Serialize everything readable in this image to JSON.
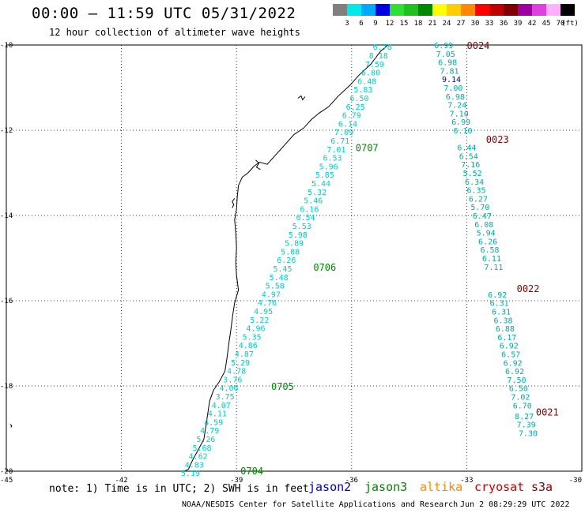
{
  "header": {
    "title": "00:00 — 11:59 UTC 05/31/2022",
    "subtitle": "12 hour collection of altimeter wave heights"
  },
  "legend": {
    "unit_label": "(ft)",
    "bins": [
      {
        "label": "3",
        "color": "#7f7f7f"
      },
      {
        "label": "6",
        "color": "#00e8e8"
      },
      {
        "label": "9",
        "color": "#00a8ff"
      },
      {
        "label": "12",
        "color": "#0000e0"
      },
      {
        "label": "15",
        "color": "#30e030"
      },
      {
        "label": "18",
        "color": "#20c020"
      },
      {
        "label": "21",
        "color": "#008800"
      },
      {
        "label": "24",
        "color": "#ffff00"
      },
      {
        "label": "27",
        "color": "#ffcc00"
      },
      {
        "label": "30",
        "color": "#ff8800"
      },
      {
        "label": "33",
        "color": "#ff0000"
      },
      {
        "label": "36",
        "color": "#c00000"
      },
      {
        "label": "39",
        "color": "#800000"
      },
      {
        "label": "42",
        "color": "#a000a0"
      },
      {
        "label": "45",
        "color": "#e040e0"
      },
      {
        "label": "70",
        "color": "#ffb0ff"
      },
      {
        "label": "",
        "color": "#000000"
      }
    ]
  },
  "map": {
    "longitude_labels": [
      "-45",
      "-42",
      "-39",
      "-36",
      "-33",
      "-30"
    ],
    "latitude_labels": [
      "-10",
      "-12",
      "-14",
      "-16",
      "-18",
      "-20"
    ],
    "lon_range": [
      -45,
      -30
    ],
    "lat_range": [
      -10,
      -20
    ]
  },
  "colors": {
    "jason2_wave": "#00cccc",
    "cryosat_wave": "#00aaaa",
    "highlight_wave": "#0000cc",
    "jason3_label": "#008800",
    "cryosat_label": "#880000"
  },
  "tracks": [
    {
      "id": "track-0704",
      "label": "0704",
      "satellite": "jason3",
      "label_pos": {
        "lon": -38.6,
        "lat": -19.98
      },
      "values": [
        {
          "text": "6.78",
          "lon": -35.2,
          "lat": -10.04
        },
        {
          "text": "8.18",
          "lon": -35.3,
          "lat": -10.24
        },
        {
          "text": "7.59",
          "lon": -35.4,
          "lat": -10.44
        },
        {
          "text": "6.80",
          "lon": -35.5,
          "lat": -10.64
        },
        {
          "text": "6.48",
          "lon": -35.6,
          "lat": -10.84
        },
        {
          "text": "5.83",
          "lon": -35.7,
          "lat": -11.04
        },
        {
          "text": "6.50",
          "lon": -35.8,
          "lat": -11.24
        },
        {
          "text": "6.25",
          "lon": -35.9,
          "lat": -11.44
        },
        {
          "text": "6.79",
          "lon": -36.0,
          "lat": -11.64
        },
        {
          "text": "6.14",
          "lon": -36.1,
          "lat": -11.84
        },
        {
          "text": "7.09",
          "lon": -36.2,
          "lat": -12.04
        },
        {
          "text": "6.71",
          "lon": -36.3,
          "lat": -12.24
        },
        {
          "text": "7.01",
          "lon": -36.4,
          "lat": -12.44
        },
        {
          "text": "6.53",
          "lon": -36.5,
          "lat": -12.64
        },
        {
          "text": "5.96",
          "lon": -36.6,
          "lat": -12.84
        },
        {
          "text": "5.85",
          "lon": -36.7,
          "lat": -13.04
        },
        {
          "text": "5.44",
          "lon": -36.8,
          "lat": -13.24
        },
        {
          "text": "5.32",
          "lon": -36.9,
          "lat": -13.44
        },
        {
          "text": "5.46",
          "lon": -37.0,
          "lat": -13.64
        },
        {
          "text": "6.16",
          "lon": -37.1,
          "lat": -13.84
        },
        {
          "text": "6.54",
          "lon": -37.2,
          "lat": -14.04
        },
        {
          "text": "5.53",
          "lon": -37.3,
          "lat": -14.24
        },
        {
          "text": "5.98",
          "lon": -37.4,
          "lat": -14.44
        },
        {
          "text": "5.89",
          "lon": -37.5,
          "lat": -14.64
        },
        {
          "text": "5.88",
          "lon": -37.6,
          "lat": -14.84
        },
        {
          "text": "6.26",
          "lon": -37.7,
          "lat": -15.04
        },
        {
          "text": "5.45",
          "lon": -37.8,
          "lat": -15.24
        },
        {
          "text": "5.48",
          "lon": -37.9,
          "lat": -15.44
        },
        {
          "text": "5.58",
          "lon": -38.0,
          "lat": -15.64
        },
        {
          "text": "4.97",
          "lon": -38.1,
          "lat": -15.84
        },
        {
          "text": "4.76",
          "lon": -38.2,
          "lat": -16.04
        },
        {
          "text": "4.95",
          "lon": -38.3,
          "lat": -16.24
        },
        {
          "text": "5.22",
          "lon": -38.4,
          "lat": -16.44
        },
        {
          "text": "4.96",
          "lon": -38.5,
          "lat": -16.64
        },
        {
          "text": "5.35",
          "lon": -38.6,
          "lat": -16.84
        },
        {
          "text": "4.86",
          "lon": -38.7,
          "lat": -17.04
        },
        {
          "text": "4.87",
          "lon": -38.8,
          "lat": -17.24
        },
        {
          "text": "5.29",
          "lon": -38.9,
          "lat": -17.44
        },
        {
          "text": "4.78",
          "lon": -39.0,
          "lat": -17.64
        },
        {
          "text": "3.76",
          "lon": -39.1,
          "lat": -17.84
        },
        {
          "text": "4.06",
          "lon": -39.2,
          "lat": -18.04
        },
        {
          "text": "3.75",
          "lon": -39.3,
          "lat": -18.24
        },
        {
          "text": "4.07",
          "lon": -39.4,
          "lat": -18.44
        },
        {
          "text": "4.11",
          "lon": -39.5,
          "lat": -18.64
        },
        {
          "text": "4.59",
          "lon": -39.6,
          "lat": -18.84
        },
        {
          "text": "4.79",
          "lon": -39.7,
          "lat": -19.04
        },
        {
          "text": "5.26",
          "lon": -39.8,
          "lat": -19.24
        },
        {
          "text": "5.68",
          "lon": -39.9,
          "lat": -19.44
        },
        {
          "text": "4.62",
          "lon": -40.0,
          "lat": -19.64
        },
        {
          "text": "4.83",
          "lon": -40.1,
          "lat": -19.84
        },
        {
          "text": "5.19",
          "lon": -40.2,
          "lat": -20.04
        }
      ]
    },
    {
      "id": "track-0024",
      "label": "0024",
      "satellite": "cryosat",
      "label_pos": {
        "lon": -32.7,
        "lat": -10.0
      },
      "values": [
        {
          "text": "6.99",
          "lon": -33.6,
          "lat": -10.0
        },
        {
          "text": "7.05",
          "lon": -33.55,
          "lat": -10.2
        },
        {
          "text": "6.98",
          "lon": -33.5,
          "lat": -10.4
        },
        {
          "text": "7.81",
          "lon": -33.45,
          "lat": -10.6
        },
        {
          "text": "9.14",
          "lon": -33.4,
          "lat": -10.8
        },
        {
          "text": "7.00",
          "lon": -33.35,
          "lat": -11.0
        },
        {
          "text": "6.98",
          "lon": -33.3,
          "lat": -11.2
        },
        {
          "text": "7.24",
          "lon": -33.25,
          "lat": -11.4
        },
        {
          "text": "7.10",
          "lon": -33.2,
          "lat": -11.6
        },
        {
          "text": "6.99",
          "lon": -33.15,
          "lat": -11.8
        }
      ]
    },
    {
      "id": "track-0023",
      "label": "0023",
      "satellite": "cryosat",
      "label_pos": {
        "lon": -32.2,
        "lat": -12.2
      },
      "values": [
        {
          "text": "6.10",
          "lon": -33.1,
          "lat": -12.0
        },
        {
          "text": "6.44",
          "lon": -33.0,
          "lat": -12.4
        },
        {
          "text": "6.54",
          "lon": -32.95,
          "lat": -12.6
        },
        {
          "text": "7.16",
          "lon": -32.9,
          "lat": -12.8
        },
        {
          "text": "5.52",
          "lon": -32.85,
          "lat": -13.0
        },
        {
          "text": "6.34",
          "lon": -32.8,
          "lat": -13.2
        },
        {
          "text": "6.35",
          "lon": -32.75,
          "lat": -13.4
        },
        {
          "text": "6.27",
          "lon": -32.7,
          "lat": -13.6
        },
        {
          "text": "5.70",
          "lon": -32.65,
          "lat": -13.8
        },
        {
          "text": "6.47",
          "lon": -32.6,
          "lat": -14.0
        },
        {
          "text": "6.08",
          "lon": -32.55,
          "lat": -14.2
        },
        {
          "text": "5.94",
          "lon": -32.5,
          "lat": -14.4
        },
        {
          "text": "6.26",
          "lon": -32.45,
          "lat": -14.6
        },
        {
          "text": "6.58",
          "lon": -32.4,
          "lat": -14.8
        },
        {
          "text": "6.11",
          "lon": -32.35,
          "lat": -15.0
        },
        {
          "text": "7.11",
          "lon": -32.3,
          "lat": -15.2
        }
      ]
    },
    {
      "id": "track-0022",
      "label": "0022",
      "satellite": "cryosat",
      "label_pos": {
        "lon": -31.4,
        "lat": -15.7
      },
      "values": [
        {
          "text": "6.92",
          "lon": -32.2,
          "lat": -15.85
        },
        {
          "text": "6.31",
          "lon": -32.15,
          "lat": -16.05
        },
        {
          "text": "6.31",
          "lon": -32.1,
          "lat": -16.25
        },
        {
          "text": "6.38",
          "lon": -32.05,
          "lat": -16.45
        },
        {
          "text": "6.88",
          "lon": -32.0,
          "lat": -16.65
        },
        {
          "text": "6.17",
          "lon": -31.95,
          "lat": -16.85
        },
        {
          "text": "6.92",
          "lon": -31.9,
          "lat": -17.05
        },
        {
          "text": "6.57",
          "lon": -31.85,
          "lat": -17.25
        },
        {
          "text": "6.92",
          "lon": -31.8,
          "lat": -17.45
        },
        {
          "text": "6.92",
          "lon": -31.75,
          "lat": -17.65
        },
        {
          "text": "7.50",
          "lon": -31.7,
          "lat": -17.85
        },
        {
          "text": "6.50",
          "lon": -31.65,
          "lat": -18.05
        },
        {
          "text": "7.02",
          "lon": -31.6,
          "lat": -18.25
        },
        {
          "text": "6.70",
          "lon": -31.55,
          "lat": -18.45
        }
      ]
    },
    {
      "id": "track-0021",
      "label": "0021",
      "satellite": "cryosat",
      "label_pos": {
        "lon": -30.9,
        "lat": -18.6
      },
      "values": [
        {
          "text": "8.27",
          "lon": -31.5,
          "lat": -18.7
        },
        {
          "text": "7.39",
          "lon": -31.45,
          "lat": -18.9
        },
        {
          "text": "7.30",
          "lon": -31.4,
          "lat": -19.1
        }
      ]
    }
  ],
  "jason3_labels": [
    {
      "text": "0707",
      "lon": -35.6,
      "lat": -12.4
    },
    {
      "text": "0706",
      "lon": -36.7,
      "lat": -15.2
    },
    {
      "text": "0705",
      "lon": -37.8,
      "lat": -18.0
    }
  ],
  "note": {
    "text": "note: 1) Time is in UTC; 2) SWH is in feet"
  },
  "satellites": [
    {
      "name": "jason2",
      "color": "#0000cc"
    },
    {
      "name": "jason3",
      "color": "#008800"
    },
    {
      "name": "altika",
      "color": "#ff8800"
    },
    {
      "name": "cryosat",
      "color": "#cc0000"
    },
    {
      "name": "s3a",
      "color": "#880000"
    }
  ],
  "footer": {
    "center": "NOAA/NESDIS Center for Satellite Applications and Research",
    "date": "Jun  2 08:29:29 UTC 2022"
  }
}
